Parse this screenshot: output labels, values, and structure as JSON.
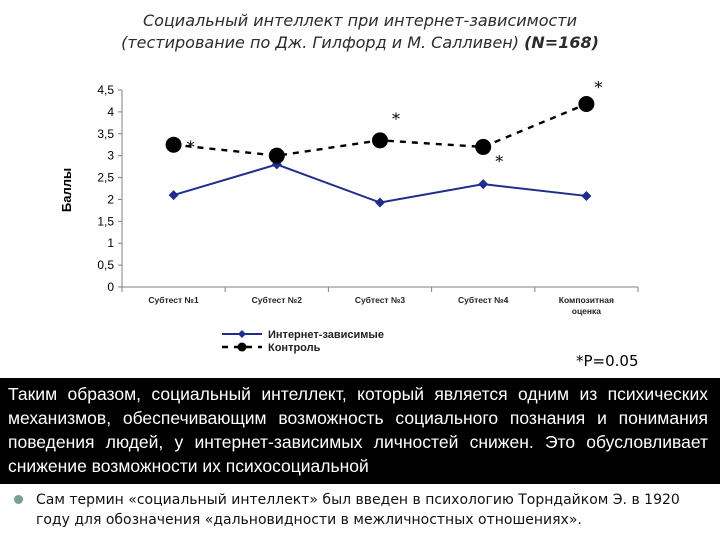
{
  "title_line1": "Социальный интеллект при интернет-зависимости",
  "title_line2": "(тестирование по Дж. Гилфорд и М. Салливен)",
  "title_n": "(N=168)",
  "p_note": "*P=0.05",
  "band_text": "Таким образом, социальный интеллект, который является одним из психических механизмов, обеспечивающим возможность социального познания и понимания поведения людей, у интернет-зависимых личностей снижен. Это обусловливает снижение возможности их психосоциальной",
  "bullet_text": "Сам термин «социальный интеллект» был введен в психологию Торндайком Э. в 1920 году для обозначения «дальновидности в межличностных отношениях».",
  "colors": {
    "internet": "#1f2e8c",
    "control": "#000000",
    "band": "#000000"
  },
  "chart_data": {
    "type": "line",
    "ylabel": "Баллы",
    "ylim": [
      0,
      4.5
    ],
    "yticks": [
      "0",
      "0,5",
      "1",
      "1,5",
      "2",
      "2,5",
      "3",
      "3,5",
      "4",
      "4,5"
    ],
    "categories": [
      "Субтест №1",
      "Субтест №2",
      "Субтест №3",
      "Субтест №4",
      "Композитная оценка"
    ],
    "series": [
      {
        "name": "Интернет-зависимые",
        "marker": "diamond",
        "dash": false,
        "values": [
          2.1,
          2.8,
          1.93,
          2.35,
          2.08
        ]
      },
      {
        "name": "Контроль",
        "marker": "circle",
        "dash": true,
        "values": [
          3.25,
          3.0,
          3.35,
          3.2,
          4.18
        ]
      }
    ],
    "significance_marks": [
      "*",
      "*",
      "*",
      "*"
    ],
    "legend_position": "bottom"
  }
}
